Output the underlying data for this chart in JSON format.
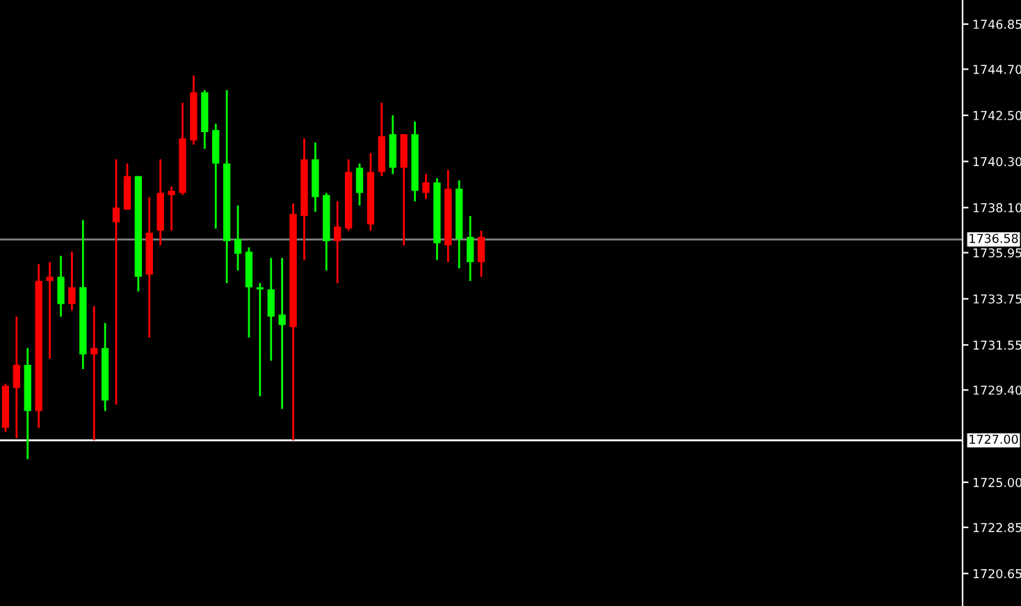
{
  "chart_data": {
    "type": "candlestick",
    "categories": [
      null,
      null,
      null,
      null,
      null,
      null,
      null,
      null,
      null,
      null,
      null,
      null,
      null,
      null,
      null,
      null,
      null,
      null,
      null,
      null,
      null,
      null,
      null,
      null,
      null,
      null,
      null,
      null,
      null,
      null,
      null,
      null,
      null,
      null,
      null,
      null,
      null,
      null,
      null,
      null,
      null,
      null,
      null,
      null,
      null,
      null,
      null,
      null,
      null,
      null,
      null,
      null,
      null,
      null,
      null,
      null,
      null,
      null,
      null,
      null,
      null,
      null,
      null,
      null,
      null,
      null,
      null,
      null,
      null,
      null,
      null,
      null,
      null,
      null,
      null,
      null,
      null,
      null,
      null,
      null,
      null,
      null,
      null,
      null,
      null,
      null,
      null
    ],
    "ohlc": [
      [
        1729.6,
        1729.7,
        1727.4,
        1727.6
      ],
      [
        1730.6,
        1732.9,
        1727.1,
        1729.5
      ],
      [
        1728.4,
        1731.4,
        1726.1,
        1730.6
      ],
      [
        1734.6,
        1735.4,
        1727.6,
        1728.4
      ],
      [
        1734.8,
        1735.5,
        1730.9,
        1734.6
      ],
      [
        1733.5,
        1735.8,
        1732.9,
        1734.8
      ],
      [
        1734.3,
        1736.0,
        1733.2,
        1733.5
      ],
      [
        1731.1,
        1737.5,
        1730.4,
        1734.3
      ],
      [
        1731.4,
        1733.4,
        1727.0,
        1731.1
      ],
      [
        1728.9,
        1732.6,
        1728.4,
        1731.4
      ],
      [
        1738.1,
        1740.4,
        1728.7,
        1737.4
      ],
      [
        1739.6,
        1740.2,
        1738.0,
        1738.0
      ],
      [
        1734.8,
        1739.6,
        1734.1,
        1739.6
      ],
      [
        1736.9,
        1738.6,
        1731.9,
        1734.9
      ],
      [
        1738.8,
        1740.4,
        1736.3,
        1737.0
      ],
      [
        1738.9,
        1739.1,
        1737.0,
        1738.7
      ],
      [
        1741.4,
        1743.1,
        1738.7,
        1738.8
      ],
      [
        1743.6,
        1744.4,
        1741.1,
        1741.3
      ],
      [
        1741.7,
        1743.7,
        1740.9,
        1743.6
      ],
      [
        1740.2,
        1742.1,
        1737.1,
        1741.8
      ],
      [
        1736.5,
        1743.7,
        1734.5,
        1740.2
      ],
      [
        1735.9,
        1738.2,
        1735.1,
        1736.6
      ],
      [
        1734.3,
        1736.2,
        1731.9,
        1736.0
      ],
      [
        1734.2,
        1734.5,
        1729.1,
        1734.3
      ],
      [
        1732.9,
        1735.7,
        1730.8,
        1734.2
      ],
      [
        1732.5,
        1735.7,
        1728.5,
        1733.0
      ],
      [
        1737.8,
        1738.3,
        1727.0,
        1732.4
      ],
      [
        1740.4,
        1741.4,
        1735.6,
        1737.7
      ],
      [
        1738.6,
        1741.2,
        1737.9,
        1740.4
      ],
      [
        1736.5,
        1738.8,
        1735.1,
        1738.7
      ],
      [
        1737.2,
        1738.4,
        1734.5,
        1736.5
      ],
      [
        1739.8,
        1740.4,
        1737.0,
        1737.1
      ],
      [
        1738.8,
        1740.2,
        1738.2,
        1740.0
      ],
      [
        1739.8,
        1740.7,
        1737.0,
        1737.3
      ],
      [
        1741.5,
        1743.1,
        1739.6,
        1739.8
      ],
      [
        1740.0,
        1742.5,
        1739.7,
        1741.6
      ],
      [
        1741.6,
        1741.6,
        1736.3,
        1740.0
      ],
      [
        1738.9,
        1742.2,
        1738.4,
        1741.6
      ],
      [
        1739.3,
        1739.7,
        1738.5,
        1738.8
      ],
      [
        1736.4,
        1739.5,
        1735.6,
        1739.3
      ],
      [
        1739.0,
        1739.9,
        1735.5,
        1736.3
      ],
      [
        1736.6,
        1739.4,
        1735.2,
        1739.0
      ],
      [
        1735.5,
        1737.7,
        1734.6,
        1736.7
      ],
      [
        1736.7,
        1737.0,
        1734.8,
        1735.5
      ],
      null,
      null,
      null,
      null,
      null,
      null,
      null,
      null,
      null,
      null,
      null,
      null,
      null,
      null,
      null,
      null,
      null,
      null,
      null,
      null,
      null,
      null,
      null,
      null,
      null,
      null,
      null,
      null,
      null,
      null,
      null,
      null,
      null,
      null,
      null,
      null,
      null,
      null,
      null,
      null,
      null,
      null,
      null
    ],
    "colors": [
      "#ff0000",
      "#ff0000",
      "#00ff00",
      "#ff0000",
      "#ff0000",
      "#00ff00",
      "#ff0000",
      "#00ff00",
      "#ff0000",
      "#00ff00",
      "#ff0000",
      "#ff0000",
      "#00ff00",
      "#ff0000",
      "#ff0000",
      "#ff0000",
      "#ff0000",
      "#ff0000",
      "#00ff00",
      "#00ff00",
      "#00ff00",
      "#00ff00",
      "#00ff00",
      "#00ff00",
      "#00ff00",
      "#00ff00",
      "#ff0000",
      "#ff0000",
      "#00ff00",
      "#00ff00",
      "#ff0000",
      "#ff0000",
      "#00ff00",
      "#ff0000",
      "#ff0000",
      "#00ff00",
      "#ff0000",
      "#00ff00",
      "#ff0000",
      "#00ff00",
      "#ff0000",
      "#00ff00",
      "#00ff00",
      "#ff0000",
      null,
      null,
      null,
      null,
      null,
      null,
      null,
      null,
      null,
      null,
      null,
      null,
      null,
      null,
      null,
      null,
      null,
      null,
      null,
      null,
      null,
      null,
      null,
      null,
      null,
      null,
      null,
      null,
      null,
      null,
      null,
      null,
      null,
      null,
      null,
      null,
      null,
      null,
      null,
      null,
      null,
      null,
      null
    ],
    "ylim": [
      1719.1,
      1748.0
    ],
    "yticks": [
      {
        "value": 1720.65,
        "label": "1720.65"
      },
      1722.85,
      {
        "value": 1725.0,
        "label": "1725.00"
      },
      {
        "value": 1729.4,
        "label": "1729.40"
      },
      1731.55,
      1733.75,
      1735.95,
      {
        "value": 1738.1,
        "label": "1738.10"
      },
      {
        "value": 1740.3,
        "label": "1740.30"
      },
      {
        "value": 1742.5,
        "label": "1742.50"
      },
      {
        "value": 1744.7,
        "label": "1744.70"
      },
      1746.85
    ],
    "ref_lines": [
      {
        "axis": "y",
        "value": 1736.58,
        "label": "1736.58",
        "color": "#808080"
      },
      {
        "axis": "y",
        "value": 1727.0,
        "label": "1727.00",
        "color": "#ffffff"
      }
    ],
    "tick_labels": "y",
    "grid": false,
    "legend": false
  }
}
